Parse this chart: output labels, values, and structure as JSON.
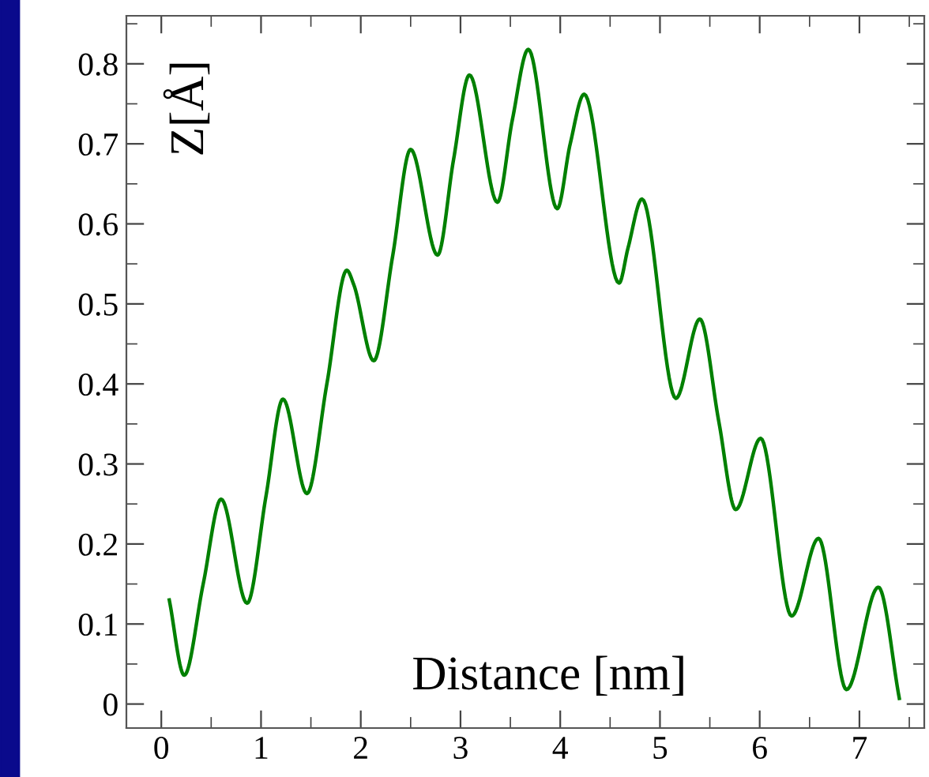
{
  "chart_data": {
    "type": "line",
    "xlabel": "Distance [nm]",
    "ylabel": "Z[Å]",
    "x": [
      0.08,
      0.23,
      0.42,
      0.6,
      0.86,
      1.05,
      1.22,
      1.46,
      1.66,
      1.86,
      1.93,
      2.13,
      2.32,
      2.5,
      2.77,
      2.93,
      3.09,
      3.37,
      3.52,
      3.68,
      3.97,
      4.1,
      4.24,
      4.59,
      4.68,
      4.82,
      5.16,
      5.4,
      5.59,
      5.76,
      6.01,
      6.32,
      6.59,
      6.87,
      7.19,
      7.4
    ],
    "series": [
      {
        "color": "#008000",
        "values": [
          0.13,
          0.036,
          0.15,
          0.256,
          0.126,
          0.26,
          0.381,
          0.263,
          0.4,
          0.542,
          0.524,
          0.429,
          0.56,
          0.693,
          0.561,
          0.68,
          0.786,
          0.627,
          0.73,
          0.818,
          0.619,
          0.7,
          0.762,
          0.526,
          0.57,
          0.631,
          0.382,
          0.481,
          0.353,
          0.243,
          0.332,
          0.11,
          0.207,
          0.018,
          0.146,
          0.007
        ]
      }
    ],
    "xlim": [
      -0.35,
      7.65
    ],
    "ylim": [
      -0.03,
      0.86
    ],
    "xticks": [
      0,
      1,
      2,
      3,
      4,
      5,
      6,
      7
    ],
    "yticks": [
      0,
      0.1,
      0.2,
      0.3,
      0.4,
      0.5,
      0.6,
      0.7,
      0.8
    ],
    "grid": false,
    "legend": false,
    "marker": "none",
    "line_style": "solid"
  }
}
